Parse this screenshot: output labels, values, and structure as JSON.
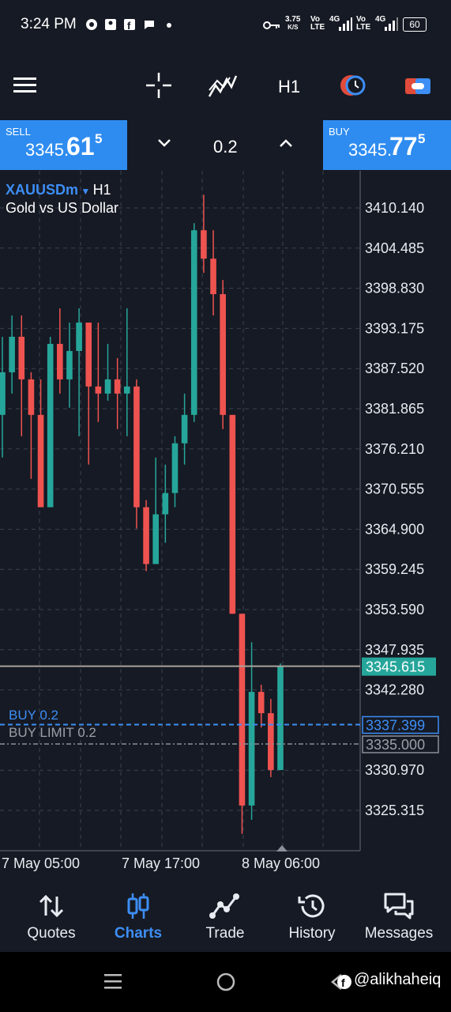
{
  "status_bar": {
    "time": "3:24 PM",
    "net_speed_value": "3.75",
    "net_speed_unit": "K/S",
    "sim1": "Vo LTE",
    "sim1_net": "4G",
    "sim2": "Vo LTE",
    "sim2_net": "4G",
    "battery": "60"
  },
  "toolbar": {
    "menu_icon": "hamburger-icon",
    "crosshair_icon": "crosshair-icon",
    "indicators_icon": "indicators-icon",
    "timeframe": "H1",
    "objects_icon": "clock-objects-icon",
    "trade_icon": "trade-toggle-icon"
  },
  "trade_bar": {
    "sell_label": "SELL",
    "sell_price_main": "3345.",
    "sell_price_big": "61",
    "sell_price_sup": "5",
    "buy_label": "BUY",
    "buy_price_main": "3345.",
    "buy_price_big": "77",
    "buy_price_sup": "5",
    "volume": "0.2"
  },
  "chart": {
    "symbol": "XAUUSDm",
    "timeframe": "H1",
    "description": "Gold vs US Dollar",
    "current_price": "3345.615",
    "order_buy_label": "BUY 0.2",
    "order_buy_price": "3337.399",
    "order_limit_label": "BUY LIMIT 0.2",
    "order_limit_price": "3335.000"
  },
  "chart_data": {
    "type": "candlestick",
    "title": "",
    "symbol": "XAUUSDm",
    "timeframe": "H1",
    "y_ticks": [
      "3410.140",
      "3404.485",
      "3398.830",
      "3393.175",
      "3387.520",
      "3381.865",
      "3376.210",
      "3370.555",
      "3364.900",
      "3359.245",
      "3353.590",
      "3347.935",
      "3342.280",
      "3330.970",
      "3325.315"
    ],
    "x_ticks": [
      "7 May 05:00",
      "7 May 17:00",
      "8 May 06:00"
    ],
    "ylim": [
      3320,
      3415
    ],
    "candles": [
      {
        "o": 3381,
        "h": 3392,
        "l": 3375,
        "c": 3387
      },
      {
        "o": 3387,
        "h": 3395,
        "l": 3384,
        "c": 3392
      },
      {
        "o": 3392,
        "h": 3395,
        "l": 3378,
        "c": 3386
      },
      {
        "o": 3386,
        "h": 3387,
        "l": 3372,
        "c": 3381
      },
      {
        "o": 3381,
        "h": 3386,
        "l": 3368,
        "c": 3368
      },
      {
        "o": 3368,
        "h": 3392,
        "l": 3368,
        "c": 3391
      },
      {
        "o": 3391,
        "h": 3396,
        "l": 3384,
        "c": 3386
      },
      {
        "o": 3386,
        "h": 3394,
        "l": 3382,
        "c": 3390
      },
      {
        "o": 3390,
        "h": 3396,
        "l": 3378,
        "c": 3394
      },
      {
        "o": 3394,
        "h": 3394,
        "l": 3374,
        "c": 3385
      },
      {
        "o": 3385,
        "h": 3394,
        "l": 3380,
        "c": 3384
      },
      {
        "o": 3384,
        "h": 3391,
        "l": 3383,
        "c": 3386
      },
      {
        "o": 3386,
        "h": 3389,
        "l": 3379,
        "c": 3384
      },
      {
        "o": 3384,
        "h": 3396,
        "l": 3378,
        "c": 3385
      },
      {
        "o": 3385,
        "h": 3386,
        "l": 3365,
        "c": 3368
      },
      {
        "o": 3368,
        "h": 3369,
        "l": 3359,
        "c": 3360
      },
      {
        "o": 3360,
        "h": 3375,
        "l": 3360,
        "c": 3367
      },
      {
        "o": 3367,
        "h": 3374,
        "l": 3363,
        "c": 3370
      },
      {
        "o": 3370,
        "h": 3378,
        "l": 3368,
        "c": 3377
      },
      {
        "o": 3377,
        "h": 3384,
        "l": 3374,
        "c": 3381
      },
      {
        "o": 3381,
        "h": 3408,
        "l": 3380,
        "c": 3407
      },
      {
        "o": 3407,
        "h": 3412,
        "l": 3401,
        "c": 3403
      },
      {
        "o": 3403,
        "h": 3407,
        "l": 3395,
        "c": 3398
      },
      {
        "o": 3398,
        "h": 3400,
        "l": 3379,
        "c": 3381
      },
      {
        "o": 3381,
        "h": 3381,
        "l": 3353,
        "c": 3353
      },
      {
        "o": 3353,
        "h": 3353,
        "l": 3322,
        "c": 3326
      },
      {
        "o": 3326,
        "h": 3349,
        "l": 3324,
        "c": 3342
      },
      {
        "o": 3342,
        "h": 3343,
        "l": 3337,
        "c": 3339
      },
      {
        "o": 3339,
        "h": 3341,
        "l": 3330,
        "c": 3331
      },
      {
        "o": 3331,
        "h": 3346,
        "l": 3331,
        "c": 3345.6
      }
    ],
    "colors": {
      "up": "#26a69a",
      "down": "#ef5350"
    }
  },
  "bottom_nav": {
    "items": [
      {
        "label": "Quotes",
        "icon": "sort-arrows-icon"
      },
      {
        "label": "Charts",
        "icon": "candles-icon"
      },
      {
        "label": "Trade",
        "icon": "trend-icon"
      },
      {
        "label": "History",
        "icon": "history-icon"
      },
      {
        "label": "Messages",
        "icon": "messages-icon"
      }
    ],
    "active": "Charts",
    "active_color": "#3d8ef5"
  },
  "system_bar": {
    "watermark": "@alikhaheiq"
  }
}
